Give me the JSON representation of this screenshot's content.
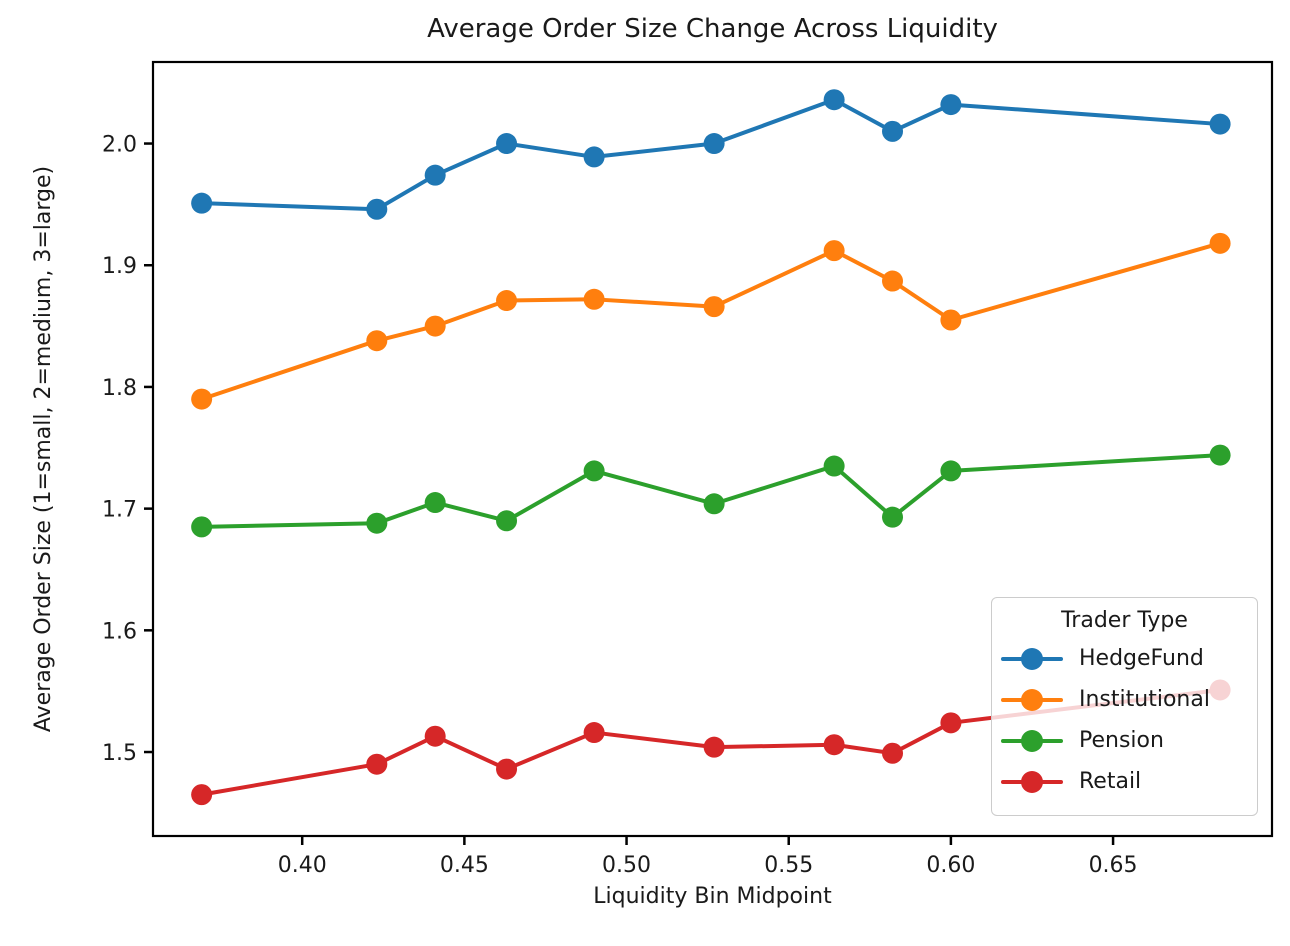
{
  "chart_data": {
    "type": "line",
    "title": "Average Order Size Change Across Liquidity",
    "xlabel": "Liquidity Bin Midpoint",
    "ylabel": "Average Order Size (1=small, 2=medium, 3=large)",
    "grid": false,
    "marker": "o",
    "legend": {
      "title": "Trader Type",
      "position": "lower right"
    },
    "x": [
      0.369,
      0.423,
      0.441,
      0.463,
      0.49,
      0.527,
      0.564,
      0.582,
      0.6,
      0.683
    ],
    "series": [
      {
        "name": "HedgeFund",
        "color": "#1f77b4",
        "values": [
          1.951,
          1.946,
          1.974,
          2.0,
          1.989,
          2.0,
          2.036,
          2.01,
          2.032,
          2.016
        ]
      },
      {
        "name": "Institutional",
        "color": "#ff7f0e",
        "values": [
          1.79,
          1.838,
          1.85,
          1.871,
          1.872,
          1.866,
          1.912,
          1.887,
          1.855,
          1.918
        ]
      },
      {
        "name": "Pension",
        "color": "#2ca02c",
        "values": [
          1.685,
          1.688,
          1.705,
          1.69,
          1.731,
          1.704,
          1.735,
          1.693,
          1.731,
          1.744
        ]
      },
      {
        "name": "Retail",
        "color": "#d62728",
        "values": [
          1.465,
          1.49,
          1.513,
          1.486,
          1.516,
          1.504,
          1.506,
          1.499,
          1.524,
          1.551
        ]
      }
    ],
    "xlim": [
      0.354,
      0.699
    ],
    "ylim": [
      1.431,
      2.067
    ],
    "xticks": [
      "0.40",
      "0.45",
      "0.50",
      "0.55",
      "0.60",
      "0.65"
    ],
    "xtick_values": [
      0.4,
      0.45,
      0.5,
      0.55,
      0.6,
      0.65
    ],
    "yticks": [
      "1.5",
      "1.6",
      "1.7",
      "1.8",
      "1.9",
      "2.0"
    ],
    "ytick_values": [
      1.5,
      1.6,
      1.7,
      1.8,
      1.9,
      2.0
    ],
    "axis_color": "#000000",
    "tick_label_color": "#1a1a1a"
  }
}
